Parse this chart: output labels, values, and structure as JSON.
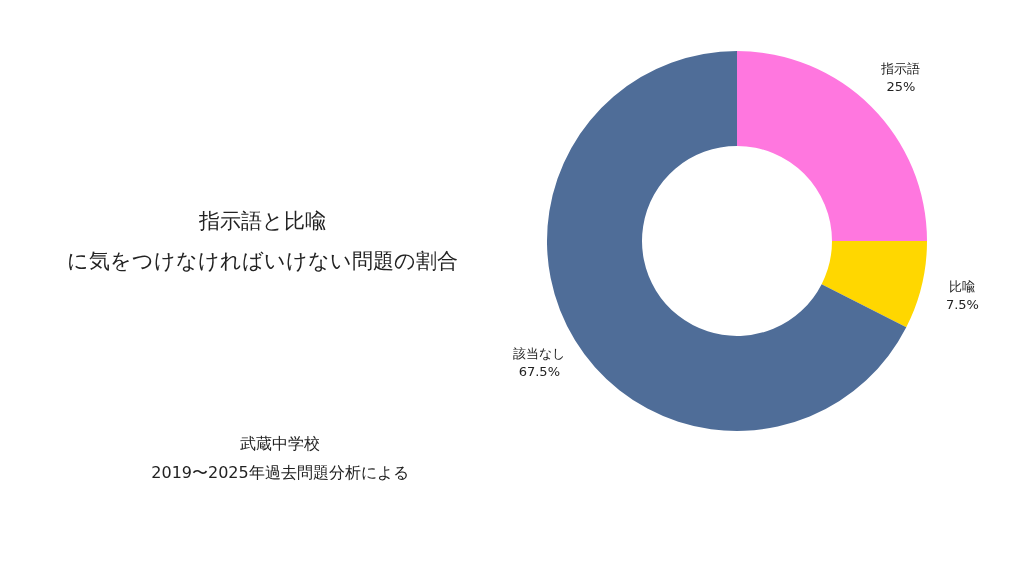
{
  "chart_data": {
    "type": "donut",
    "title": "指示語と比喩",
    "subtitle": "に気をつけなければいけない問題の割合",
    "categories": [
      "指示語",
      "比喩",
      "該当なし"
    ],
    "values": [
      25,
      7.5,
      67.5
    ],
    "colors": [
      "#ff77df",
      "#ffd700",
      "#4f6d98"
    ],
    "value_labels": [
      "25%",
      "7.5%",
      "67.5%"
    ],
    "annotations": [
      "武蔵中学校",
      "2019〜2025年過去問題分析による"
    ]
  }
}
